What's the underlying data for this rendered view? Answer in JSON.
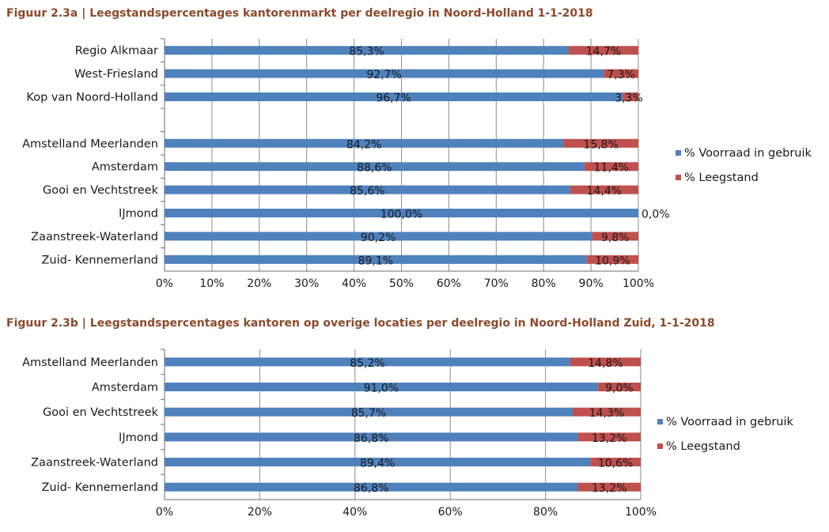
{
  "chart_data": [
    {
      "type": "bar",
      "orientation": "horizontal-stacked",
      "title": "Figuur 2.3a | Leegstandspercentages kantorenmarkt per deelregio in Noord-Holland 1-1-2018",
      "categories": [
        "Regio Alkmaar",
        "West-Friesland",
        "Kop van Noord-Holland",
        "",
        "Amstelland Meerlanden",
        "Amsterdam",
        "Gooi en Vechtstreek",
        "IJmond",
        "Zaanstreek-Waterland",
        "Zuid- Kennemerland"
      ],
      "series": [
        {
          "name": "% Voorraad in gebruik",
          "color": "#4f81bd",
          "values": [
            85.3,
            92.7,
            96.7,
            null,
            84.2,
            88.6,
            85.6,
            100.0,
            90.2,
            89.1
          ],
          "labels": [
            "85,3%",
            "92,7%",
            "96,7%",
            "",
            "84,2%",
            "88,6%",
            "85,6%",
            "100,0%",
            "90,2%",
            "89,1%"
          ]
        },
        {
          "name": "% Leegstand",
          "color": "#c0504d",
          "values": [
            14.7,
            7.3,
            3.3,
            null,
            15.8,
            11.4,
            14.4,
            0.0,
            9.8,
            10.9
          ],
          "labels": [
            "14,7%",
            "7,3%",
            "3,3%",
            "",
            "15,8%",
            "11,4%",
            "14,4%",
            "0,0%",
            "9,8%",
            "10,9%"
          ]
        }
      ],
      "xlim": [
        0,
        100
      ],
      "ticks": [
        "0%",
        "10%",
        "20%",
        "30%",
        "40%",
        "50%",
        "60%",
        "70%",
        "80%",
        "90%",
        "100%"
      ],
      "grid": true,
      "legend": "right"
    },
    {
      "type": "bar",
      "orientation": "horizontal-stacked",
      "title": "Figuur 2.3b | Leegstandspercentages kantoren op overige locaties per deelregio in Noord-Holland Zuid, 1-1-2018",
      "categories": [
        "Amstelland Meerlanden",
        "Amsterdam",
        "Gooi en Vechtstreek",
        "IJmond",
        "Zaanstreek-Waterland",
        "Zuid- Kennemerland"
      ],
      "series": [
        {
          "name": "% Voorraad in gebruik",
          "color": "#4f81bd",
          "values": [
            85.2,
            91.0,
            85.7,
            86.8,
            89.4,
            86.8
          ],
          "labels": [
            "85,2%",
            "91,0%",
            "85,7%",
            "86,8%",
            "89,4%",
            "86,8%"
          ]
        },
        {
          "name": "% Leegstand",
          "color": "#c0504d",
          "values": [
            14.8,
            9.0,
            14.3,
            13.2,
            10.6,
            13.2
          ],
          "labels": [
            "14,8%",
            "9,0%",
            "14,3%",
            "13,2%",
            "10,6%",
            "13,2%"
          ]
        }
      ],
      "xlim": [
        0,
        100
      ],
      "ticks": [
        "0%",
        "20%",
        "40%",
        "60%",
        "80%",
        "100%"
      ],
      "grid": true,
      "legend": "right"
    }
  ]
}
